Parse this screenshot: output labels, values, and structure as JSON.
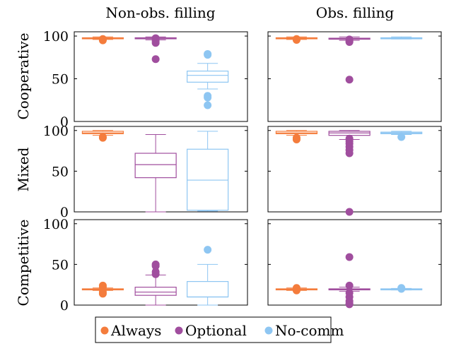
{
  "chart_data": {
    "type": "boxplot",
    "column_titles": [
      "Non-obs. filling",
      "Obs. filling"
    ],
    "row_labels": [
      "Cooperative",
      "Mixed",
      "Competitive"
    ],
    "y_ticks": [
      "0",
      "50",
      "100"
    ],
    "ylim": [
      0,
      105
    ],
    "grid": false,
    "legend_placement": "bottom-center",
    "legend": [
      {
        "name": "Always",
        "color": "#f47c3c"
      },
      {
        "name": "Optional",
        "color": "#a04e9e"
      },
      {
        "name": "No-comm",
        "color": "#8ec6f2"
      }
    ],
    "panels": [
      {
        "row": "Cooperative",
        "column": "Non-obs. filling",
        "boxes": [
          {
            "series": "Always",
            "min": 96,
            "q1": 97,
            "median": 97.5,
            "q3": 98,
            "max": 99,
            "outliers": [
              95,
              96,
              96.5
            ]
          },
          {
            "series": "Optional",
            "min": 95.5,
            "q1": 97,
            "median": 97.5,
            "q3": 98,
            "max": 99,
            "outliers": [
              97.5,
              96,
              94,
              92,
              73
            ]
          },
          {
            "series": "No-comm",
            "min": 38,
            "q1": 46,
            "median": 54,
            "q3": 59,
            "max": 68,
            "outliers": [
              79,
              78,
              30,
              28,
              19
            ]
          }
        ]
      },
      {
        "row": "Cooperative",
        "column": "Obs. filling",
        "boxes": [
          {
            "series": "Always",
            "min": 96,
            "q1": 97,
            "median": 97.5,
            "q3": 98,
            "max": 99,
            "outliers": [
              95.5,
              96.5
            ]
          },
          {
            "series": "Optional",
            "min": 95,
            "q1": 96.5,
            "median": 97,
            "q3": 97.5,
            "max": 99,
            "outliers": [
              96,
              94,
              93,
              49
            ]
          },
          {
            "series": "No-comm",
            "min": 96.5,
            "q1": 97,
            "median": 97.5,
            "q3": 98,
            "max": 99,
            "outliers": []
          }
        ]
      },
      {
        "row": "Mixed",
        "column": "Non-obs. filling",
        "boxes": [
          {
            "series": "Always",
            "min": 94,
            "q1": 96,
            "median": 97,
            "q3": 99,
            "max": 100,
            "outliers": [
              91,
              92
            ]
          },
          {
            "series": "Optional",
            "min": 0,
            "q1": 42,
            "median": 58,
            "q3": 72,
            "max": 95,
            "outliers": []
          },
          {
            "series": "No-comm",
            "min": 1,
            "q1": 2,
            "median": 39,
            "q3": 77,
            "max": 99,
            "outliers": []
          }
        ]
      },
      {
        "row": "Mixed",
        "column": "Obs. filling",
        "boxes": [
          {
            "series": "Always",
            "min": 94,
            "q1": 96,
            "median": 97,
            "q3": 99,
            "max": 100,
            "outliers": [
              91,
              89
            ]
          },
          {
            "series": "Optional",
            "min": 89,
            "q1": 94,
            "median": 97,
            "q3": 99,
            "max": 100,
            "outliers": [
              90,
              87,
              84,
              80,
              76,
              72,
              0
            ]
          },
          {
            "series": "No-comm",
            "min": 95,
            "q1": 96,
            "median": 97,
            "q3": 98,
            "max": 99,
            "outliers": [
              92
            ]
          }
        ]
      },
      {
        "row": "Competitive",
        "column": "Non-obs. filling",
        "boxes": [
          {
            "series": "Always",
            "min": 18,
            "q1": 19,
            "median": 19.5,
            "q3": 20,
            "max": 21,
            "outliers": [
              14,
              16,
              22,
              24
            ]
          },
          {
            "series": "Optional",
            "min": 0,
            "q1": 12,
            "median": 16,
            "q3": 22,
            "max": 37,
            "outliers": [
              38,
              41,
              48,
              50
            ]
          },
          {
            "series": "No-comm",
            "min": 0,
            "q1": 10,
            "median": 10,
            "q3": 29,
            "max": 50,
            "outliers": [
              68
            ]
          }
        ]
      },
      {
        "row": "Competitive",
        "column": "Obs. filling",
        "boxes": [
          {
            "series": "Always",
            "min": 18,
            "q1": 19,
            "median": 19.5,
            "q3": 20,
            "max": 21,
            "outliers": [
              18,
              21
            ]
          },
          {
            "series": "Optional",
            "min": 17,
            "q1": 19,
            "median": 19.5,
            "q3": 20,
            "max": 22,
            "outliers": [
              59,
              24,
              15,
              10,
              5,
              2,
              1
            ]
          },
          {
            "series": "No-comm",
            "min": 18.5,
            "q1": 19,
            "median": 19.5,
            "q3": 20,
            "max": 20.5,
            "outliers": [
              20,
              21
            ]
          }
        ]
      }
    ]
  }
}
